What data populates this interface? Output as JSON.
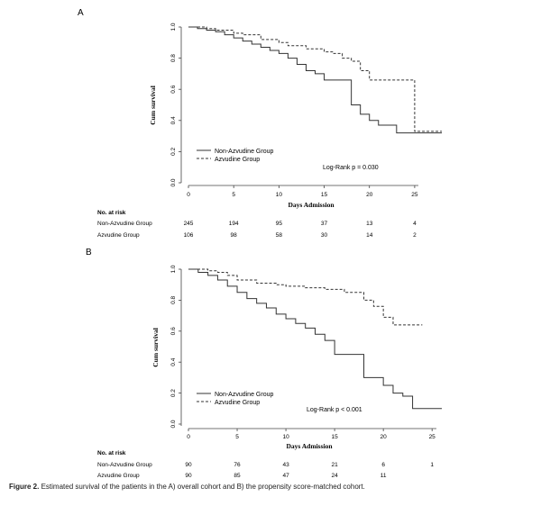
{
  "chart_data": [
    {
      "type": "line",
      "subtype": "kaplan-meier",
      "panel": "A",
      "ylabel": "Cum survival",
      "xlabel": "Days Admission",
      "xlim": [
        0,
        28
      ],
      "ylim": [
        0,
        1.0
      ],
      "xticks": [
        "0",
        "5",
        "10",
        "15",
        "20",
        "25"
      ],
      "yticks": [
        "0.0",
        "0.2",
        "0.4",
        "0.6",
        "0.8",
        "1.0"
      ],
      "legend_position": "bottom-left",
      "annotation": "Log-Rank p = 0.030",
      "series": [
        {
          "name": "Non-Azvudine Group",
          "style": "solid",
          "x": [
            0,
            1,
            2,
            3,
            4,
            5,
            6,
            7,
            8,
            9,
            10,
            11,
            12,
            13,
            14,
            15,
            16,
            17,
            18,
            19,
            20,
            21,
            22,
            23,
            28
          ],
          "y": [
            1.0,
            0.99,
            0.98,
            0.97,
            0.95,
            0.93,
            0.91,
            0.89,
            0.87,
            0.85,
            0.83,
            0.8,
            0.76,
            0.72,
            0.7,
            0.66,
            0.66,
            0.66,
            0.5,
            0.44,
            0.4,
            0.37,
            0.37,
            0.32,
            0.32
          ]
        },
        {
          "name": "Azvudine Group",
          "style": "dashed",
          "x": [
            0,
            2,
            3,
            5,
            6,
            8,
            10,
            11,
            13,
            15,
            16,
            17,
            18,
            19,
            20,
            25,
            28
          ],
          "y": [
            1.0,
            0.99,
            0.98,
            0.96,
            0.95,
            0.92,
            0.9,
            0.88,
            0.86,
            0.84,
            0.83,
            0.8,
            0.78,
            0.72,
            0.66,
            0.33,
            0.33
          ]
        }
      ],
      "risk_table": {
        "title": "No. at risk",
        "times": [
          0,
          5,
          10,
          15,
          20,
          25
        ],
        "rows": [
          {
            "label": "Non-Azvudine Group",
            "values": [
              "245",
              "194",
              "95",
              "37",
              "13",
              "4"
            ]
          },
          {
            "label": "Azvudine Group",
            "values": [
              "106",
              "98",
              "58",
              "30",
              "14",
              "2"
            ]
          }
        ]
      }
    },
    {
      "type": "line",
      "subtype": "kaplan-meier",
      "panel": "B",
      "ylabel": "Cum survival",
      "xlabel": "Days Admission",
      "xlim": [
        0,
        26
      ],
      "ylim": [
        0,
        1.0
      ],
      "xticks": [
        "0",
        "5",
        "10",
        "15",
        "20",
        "25"
      ],
      "yticks": [
        "0.0",
        "0.2",
        "0.4",
        "0.6",
        "0.8",
        "1.0"
      ],
      "legend_position": "bottom-left",
      "annotation": "Log-Rank p < 0.001",
      "series": [
        {
          "name": "Non-Azvudine Group",
          "style": "solid",
          "x": [
            0,
            1,
            2,
            3,
            4,
            5,
            6,
            7,
            8,
            9,
            10,
            11,
            12,
            13,
            14,
            15,
            16,
            17,
            18,
            20,
            21,
            22,
            23,
            26
          ],
          "y": [
            1.0,
            0.98,
            0.96,
            0.93,
            0.89,
            0.85,
            0.81,
            0.78,
            0.75,
            0.71,
            0.68,
            0.65,
            0.62,
            0.58,
            0.54,
            0.45,
            0.45,
            0.45,
            0.3,
            0.25,
            0.2,
            0.18,
            0.1,
            0.1
          ]
        },
        {
          "name": "Azvudine Group",
          "style": "dashed",
          "x": [
            0,
            2,
            3,
            4,
            5,
            7,
            9,
            10,
            12,
            14,
            16,
            18,
            19,
            20,
            21,
            24
          ],
          "y": [
            1.0,
            0.99,
            0.98,
            0.96,
            0.93,
            0.91,
            0.9,
            0.89,
            0.88,
            0.87,
            0.85,
            0.8,
            0.76,
            0.69,
            0.64,
            0.64
          ]
        }
      ],
      "risk_table": {
        "title": "No. at risk",
        "times": [
          0,
          5,
          10,
          15,
          20,
          25
        ],
        "rows": [
          {
            "label": "Non-Azvudine Group",
            "values": [
              "90",
              "76",
              "43",
              "21",
              "6",
              "1"
            ]
          },
          {
            "label": "Azvudine Group",
            "values": [
              "90",
              "85",
              "47",
              "24",
              "11",
              ""
            ]
          }
        ]
      }
    }
  ],
  "caption": {
    "label": "Figure 2.",
    "text": "Estimated survival of the patients in the A) overall cohort and B) the propensity score-matched cohort."
  }
}
